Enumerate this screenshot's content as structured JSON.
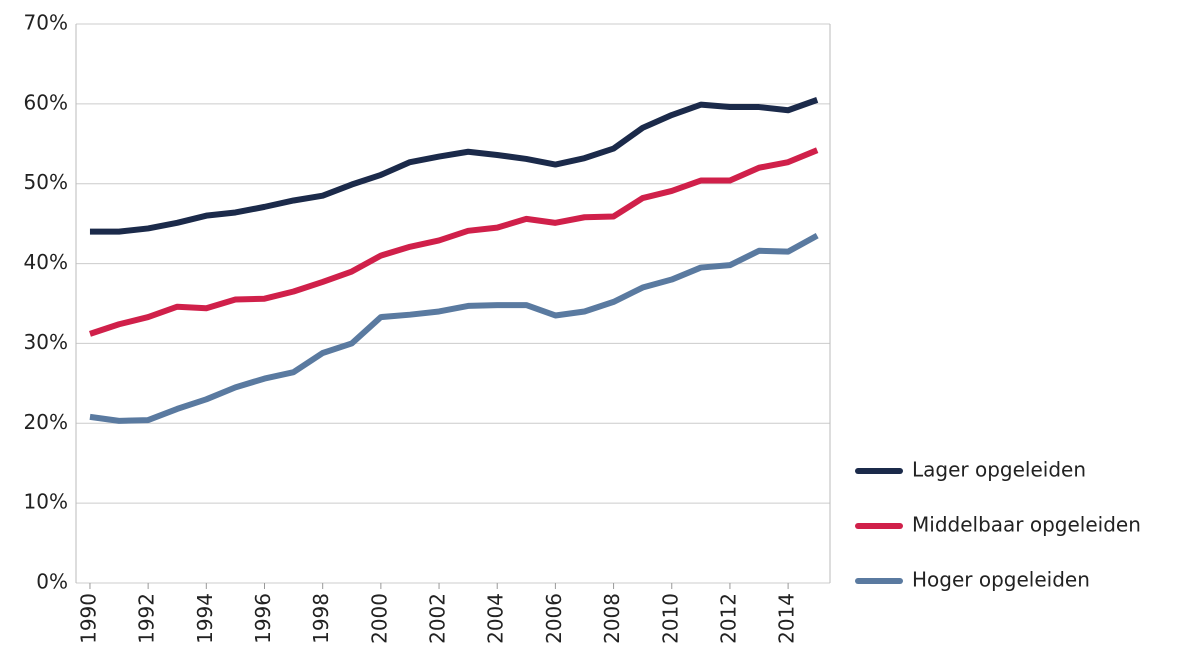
{
  "chart_data": {
    "type": "line",
    "x": [
      1990,
      1991,
      1992,
      1993,
      1994,
      1995,
      1996,
      1997,
      1998,
      1999,
      2000,
      2001,
      2002,
      2003,
      2004,
      2005,
      2006,
      2007,
      2008,
      2009,
      2010,
      2011,
      2012,
      2013,
      2014,
      2015
    ],
    "series": [
      {
        "name": "Lager opgeleiden",
        "color": "#1b2a4a",
        "values": [
          44.0,
          44.0,
          44.4,
          45.1,
          46.0,
          46.4,
          47.1,
          47.9,
          48.5,
          49.9,
          51.1,
          52.7,
          53.4,
          54.0,
          53.6,
          53.1,
          52.4,
          53.2,
          54.4,
          57.0,
          58.6,
          59.9,
          59.6,
          59.6,
          59.2,
          60.5
        ]
      },
      {
        "name": "Middelbaar opgeleiden",
        "color": "#d0204a",
        "values": [
          31.2,
          32.4,
          33.3,
          34.6,
          34.4,
          35.5,
          35.6,
          36.5,
          37.7,
          39.0,
          41.0,
          42.1,
          42.9,
          44.1,
          44.5,
          45.6,
          45.1,
          45.8,
          45.9,
          48.2,
          49.1,
          50.4,
          50.4,
          52.0,
          52.7,
          54.2
        ]
      },
      {
        "name": "Hoger opgeleiden",
        "color": "#5a7aa0",
        "values": [
          20.8,
          20.3,
          20.4,
          21.8,
          23.0,
          24.5,
          25.6,
          26.4,
          28.8,
          30.0,
          33.3,
          33.6,
          34.0,
          34.7,
          34.8,
          34.8,
          33.5,
          34.0,
          35.2,
          37.0,
          38.0,
          39.5,
          39.8,
          41.6,
          41.5,
          43.5
        ]
      }
    ],
    "xlim": [
      1989.52,
      2015.44
    ],
    "xticks": [
      1990,
      1992,
      1994,
      1996,
      1998,
      2000,
      2002,
      2004,
      2006,
      2008,
      2010,
      2012,
      2014
    ],
    "ylim": [
      0,
      70
    ],
    "yticks": [
      {
        "value": 0,
        "label": "0%"
      },
      {
        "value": 10,
        "label": "10%"
      },
      {
        "value": 20,
        "label": "20%"
      },
      {
        "value": 30,
        "label": "30%"
      },
      {
        "value": 40,
        "label": "40%"
      },
      {
        "value": 50,
        "label": "50%"
      },
      {
        "value": 60,
        "label": "60%"
      },
      {
        "value": 70,
        "label": "70%"
      }
    ],
    "grid": true,
    "legend": "right"
  }
}
